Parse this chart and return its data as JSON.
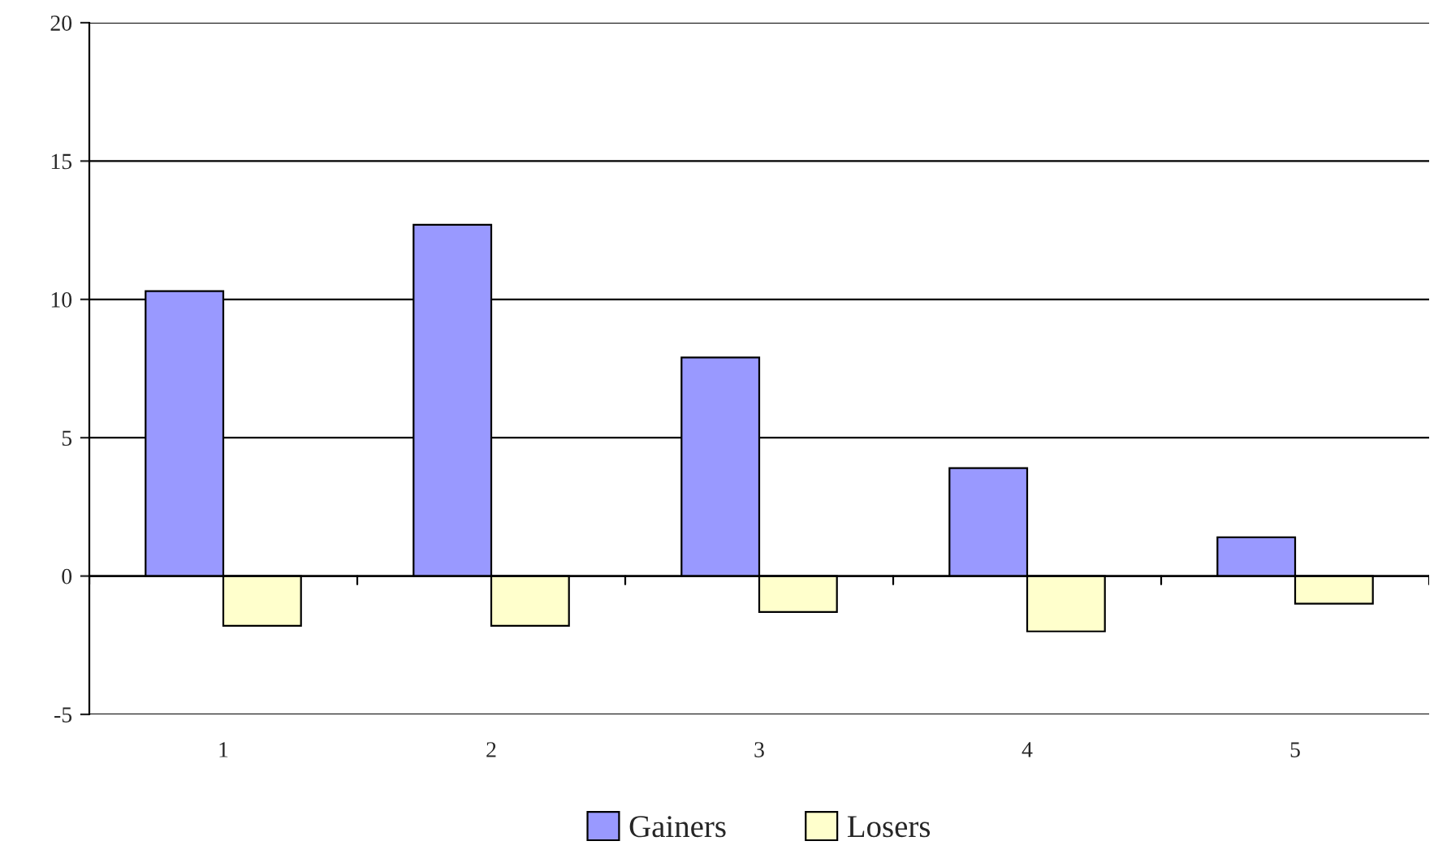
{
  "chart_data": {
    "type": "bar",
    "categories": [
      "1",
      "2",
      "3",
      "4",
      "5"
    ],
    "series": [
      {
        "name": "Gainers",
        "color": "#9999ff",
        "values": [
          10.3,
          12.7,
          7.9,
          3.9,
          1.4
        ]
      },
      {
        "name": "Losers",
        "color": "#ffffcc",
        "values": [
          -1.8,
          -1.8,
          -1.3,
          -2.0,
          -1.0
        ]
      }
    ],
    "ylim": [
      -5,
      20
    ],
    "yticks": [
      -5,
      0,
      5,
      10,
      15,
      20
    ],
    "grid": "y",
    "legend": "bottom"
  }
}
